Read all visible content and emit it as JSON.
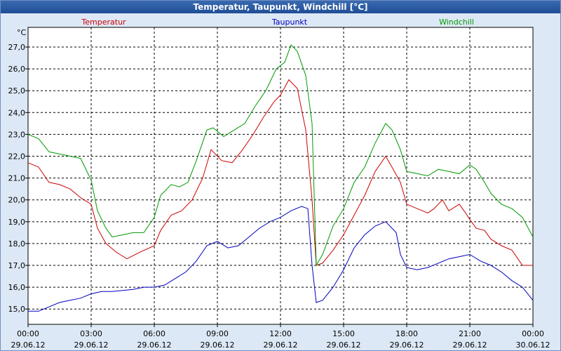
{
  "chart_data": {
    "type": "line",
    "title": "Temperatur, Taupunkt, Windchill [°C]",
    "ylabel": "°C",
    "ylim": [
      14.3,
      27.9
    ],
    "yticks": [
      15.0,
      16.0,
      17.0,
      18.0,
      19.0,
      20.0,
      21.0,
      22.0,
      23.0,
      24.0,
      25.0,
      26.0,
      27.0
    ],
    "ytick_labels": [
      "15,0",
      "16,0",
      "17,0",
      "18,0",
      "19,0",
      "20,0",
      "21,0",
      "22,0",
      "23,0",
      "24,0",
      "25,0",
      "26,0",
      "27,0"
    ],
    "xlim": [
      0,
      24
    ],
    "xticks": [
      0,
      3,
      6,
      9,
      12,
      15,
      18,
      21,
      24
    ],
    "xtick_labels": [
      {
        "time": "00:00",
        "date": "29.06.12"
      },
      {
        "time": "03:00",
        "date": "29.06.12"
      },
      {
        "time": "06:00",
        "date": "29.06.12"
      },
      {
        "time": "09:00",
        "date": "29.06.12"
      },
      {
        "time": "12:00",
        "date": "29.06.12"
      },
      {
        "time": "15:00",
        "date": "29.06.12"
      },
      {
        "time": "18:00",
        "date": "29.06.12"
      },
      {
        "time": "21:00",
        "date": "29.06.12"
      },
      {
        "time": "00:00",
        "date": "30.06.12"
      }
    ],
    "grid": true,
    "series": [
      {
        "name": "Temperatur",
        "color": "#cc0000",
        "x": [
          0,
          0.5,
          1,
          1.5,
          2,
          2.5,
          3,
          3.3,
          3.7,
          4.2,
          4.7,
          5.3,
          6,
          6.3,
          6.8,
          7.3,
          7.8,
          8.3,
          8.7,
          9.2,
          9.7,
          10.2,
          10.7,
          11.2,
          11.7,
          12,
          12.4,
          12.8,
          13.2,
          13.5,
          13.7,
          14,
          14.5,
          15,
          15.5,
          16,
          16.5,
          17,
          17.3,
          17.7,
          18,
          18.5,
          19,
          19.3,
          19.7,
          20,
          20.5,
          20.8,
          21,
          21.3,
          21.7,
          22,
          22.5,
          23,
          23.5,
          24
        ],
        "values": [
          21.7,
          21.5,
          20.8,
          20.7,
          20.5,
          20.1,
          19.8,
          18.7,
          18.0,
          17.6,
          17.3,
          17.6,
          17.9,
          18.6,
          19.3,
          19.5,
          20.0,
          21.0,
          22.3,
          21.8,
          21.7,
          22.3,
          23.0,
          23.8,
          24.5,
          24.8,
          25.5,
          25.1,
          23.2,
          20.0,
          17.0,
          17.1,
          17.7,
          18.4,
          19.3,
          20.2,
          21.3,
          22.0,
          21.5,
          20.8,
          19.8,
          19.6,
          19.4,
          19.6,
          20.0,
          19.5,
          19.8,
          19.4,
          19.1,
          18.7,
          18.6,
          18.2,
          17.9,
          17.7,
          17.0,
          17.0
        ]
      },
      {
        "name": "Taupunkt",
        "color": "#0000bb",
        "x": [
          0,
          0.5,
          1,
          1.5,
          2,
          2.5,
          3,
          3.5,
          4,
          4.5,
          5,
          5.5,
          6,
          6.5,
          7,
          7.5,
          8,
          8.5,
          9,
          9.5,
          10,
          10.5,
          11,
          11.5,
          12,
          12.5,
          13,
          13.3,
          13.5,
          13.7,
          14,
          14.5,
          15,
          15.5,
          16,
          16.5,
          17,
          17.5,
          17.7,
          18,
          18.5,
          19,
          19.5,
          20,
          20.5,
          21,
          21.5,
          22,
          22.5,
          23,
          23.5,
          24
        ],
        "values": [
          14.9,
          14.9,
          15.1,
          15.3,
          15.4,
          15.5,
          15.7,
          15.8,
          15.8,
          15.85,
          15.9,
          16.0,
          16.0,
          16.1,
          16.4,
          16.7,
          17.2,
          17.9,
          18.1,
          17.8,
          17.9,
          18.3,
          18.7,
          19.0,
          19.2,
          19.5,
          19.7,
          19.6,
          17.0,
          15.3,
          15.4,
          16.0,
          16.8,
          17.8,
          18.4,
          18.8,
          19.0,
          18.5,
          17.5,
          16.9,
          16.8,
          16.9,
          17.1,
          17.3,
          17.4,
          17.5,
          17.2,
          17.0,
          16.7,
          16.3,
          16.0,
          15.4
        ]
      },
      {
        "name": "Windchill",
        "color": "#009900",
        "x": [
          0,
          0.5,
          1,
          1.5,
          2,
          2.5,
          3,
          3.3,
          3.7,
          4,
          4.5,
          5,
          5.5,
          6,
          6.3,
          6.8,
          7.2,
          7.6,
          8,
          8.5,
          8.8,
          9.3,
          9.8,
          10.3,
          10.8,
          11.3,
          11.8,
          12.2,
          12.5,
          12.8,
          13.2,
          13.5,
          13.7,
          14,
          14.5,
          15,
          15.5,
          16,
          16.5,
          17,
          17.3,
          17.7,
          18,
          18.5,
          19,
          19.5,
          20,
          20.5,
          21,
          21.3,
          21.7,
          22,
          22.5,
          23,
          23.5,
          24
        ],
        "values": [
          23.0,
          22.8,
          22.2,
          22.1,
          22.0,
          21.9,
          20.9,
          19.5,
          18.7,
          18.3,
          18.4,
          18.5,
          18.5,
          19.2,
          20.2,
          20.7,
          20.6,
          20.8,
          21.8,
          23.2,
          23.3,
          22.9,
          23.2,
          23.5,
          24.3,
          25.0,
          26.0,
          26.3,
          27.1,
          26.8,
          25.7,
          23.5,
          17.0,
          17.5,
          18.8,
          19.6,
          20.8,
          21.5,
          22.6,
          23.5,
          23.2,
          22.3,
          21.3,
          21.2,
          21.1,
          21.4,
          21.3,
          21.2,
          21.6,
          21.4,
          20.8,
          20.3,
          19.8,
          19.6,
          19.2,
          18.3
        ]
      }
    ]
  }
}
